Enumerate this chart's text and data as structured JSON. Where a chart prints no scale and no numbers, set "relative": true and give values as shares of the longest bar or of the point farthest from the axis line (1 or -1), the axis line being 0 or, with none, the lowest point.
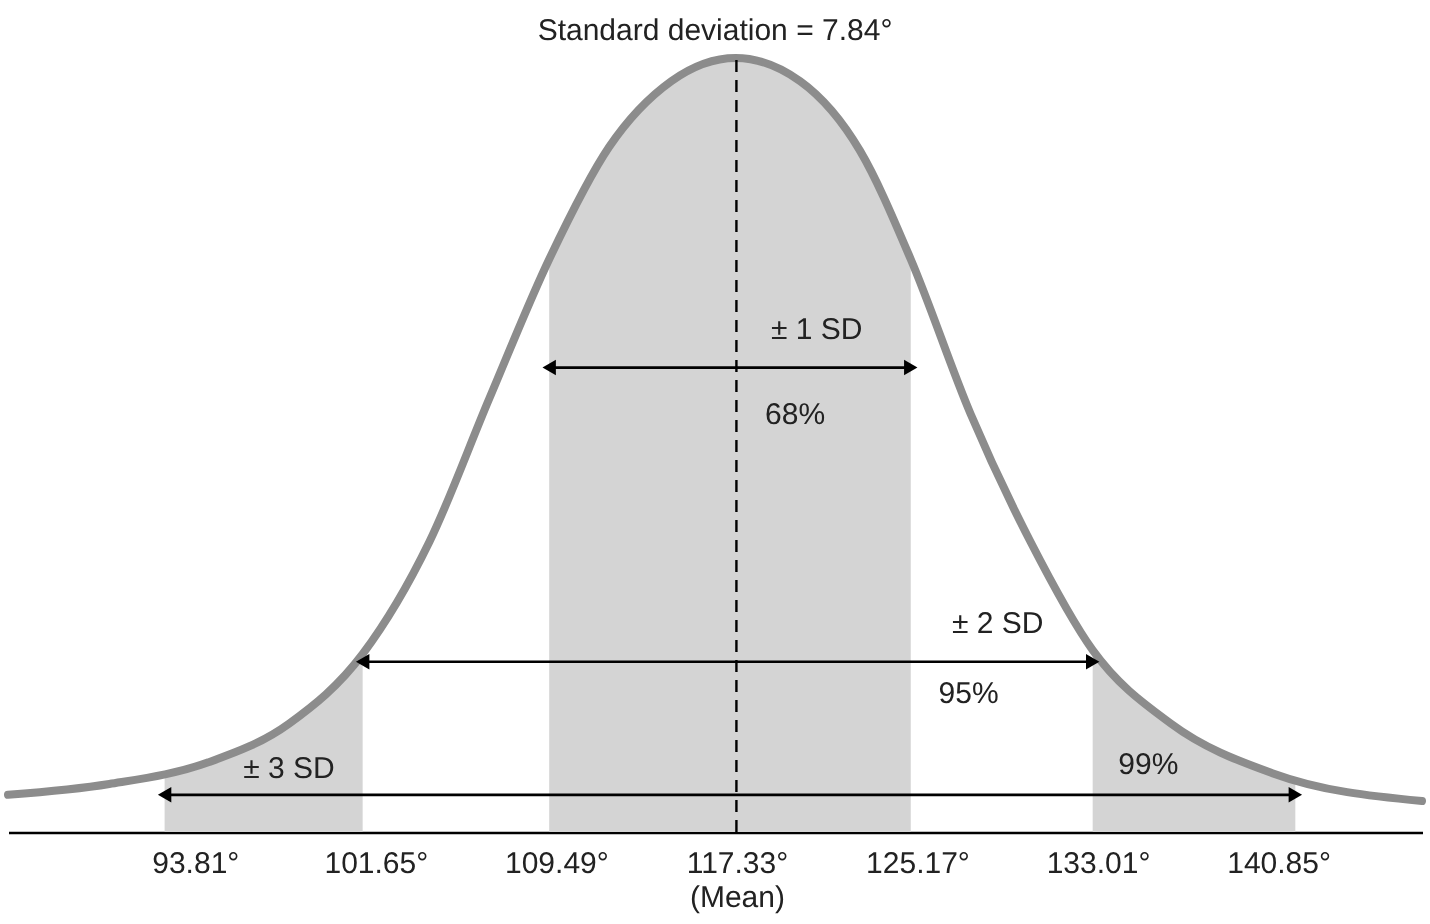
{
  "chart_data": {
    "type": "line",
    "title": "Standard deviation = 7.84°",
    "relative": true,
    "xlim": [
      85.7,
      147.1
    ],
    "xticks": [
      {
        "value": 93.81,
        "label": "93.81°"
      },
      {
        "value": 101.65,
        "label": "101.65°"
      },
      {
        "value": 109.49,
        "label": "109.49°"
      },
      {
        "value": 117.33,
        "label": "117.33°\n(Mean)"
      },
      {
        "value": 125.17,
        "label": "125.17°"
      },
      {
        "value": 133.01,
        "label": "133.01°"
      },
      {
        "value": 140.85,
        "label": "140.85°"
      }
    ],
    "grid": false,
    "series": [
      {
        "type": "area",
        "color": "#d4d4d4",
        "x": [
          92.5,
          94.4,
          97.9,
          101.1
        ],
        "values": [
          0.078,
          0.09,
          0.14,
          0.23
        ]
      },
      {
        "type": "area",
        "color": "#d4d4d4",
        "x": [
          109.2,
          111.8,
          114.5,
          117.3,
          120.1,
          122.7,
          124.9
        ],
        "values": [
          0.74,
          0.885,
          0.97,
          1,
          0.97,
          0.88,
          0.74
        ]
      },
      {
        "type": "area",
        "color": "#d4d4d4",
        "x": [
          132.8,
          136.2,
          140.6,
          141.6
        ],
        "values": [
          0.235,
          0.14,
          0.076,
          0.07
        ]
      },
      {
        "color": "#8c8c8c",
        "x": [
          85.7,
          90.1,
          94.4,
          97.9,
          101.1,
          104.0,
          106.6,
          109.2,
          111.8,
          114.5,
          117.3,
          120.1,
          122.7,
          124.9,
          127.5,
          130.1,
          132.8,
          136.2,
          140.6,
          147.1
        ],
        "values": [
          0.048,
          0.062,
          0.09,
          0.14,
          0.23,
          0.375,
          0.56,
          0.74,
          0.885,
          0.97,
          1,
          0.97,
          0.88,
          0.74,
          0.54,
          0.375,
          0.235,
          0.14,
          0.076,
          0.04
        ]
      },
      {
        "type": "line",
        "color": "#000000",
        "marker": "triangle",
        "x": [
          109.2,
          124.9
        ],
        "values": [
          0.6,
          0.6
        ]
      },
      {
        "type": "line",
        "color": "#000000",
        "marker": "triangle",
        "x": [
          101.1,
          132.8
        ],
        "values": [
          0.22,
          0.22
        ]
      },
      {
        "type": "line",
        "color": "#000000",
        "marker": "triangle",
        "x": [
          92.5,
          141.6
        ],
        "values": [
          0.048,
          0.048
        ]
      }
    ],
    "ref_lines": [
      {
        "axis": "x",
        "value": 117.33,
        "line_style": "dashed",
        "color": "#000000"
      }
    ],
    "annotations": [
      "± 1 SD",
      "68%",
      "± 2 SD",
      "95%",
      "± 3 SD",
      "99%"
    ]
  }
}
